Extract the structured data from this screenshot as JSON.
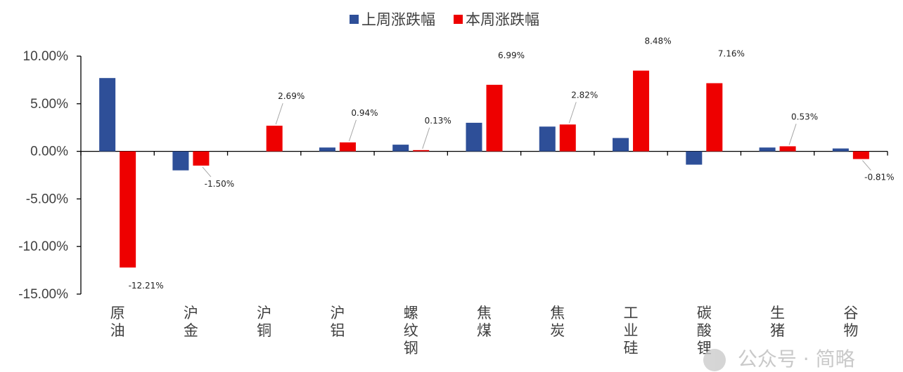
{
  "legend": {
    "last_week": "上周涨跌幅",
    "this_week": "本周涨跌幅"
  },
  "colors": {
    "last_week": "#2e4f98",
    "this_week": "#ee0000",
    "axis": "#000000"
  },
  "chart_data": {
    "type": "bar",
    "categories": [
      "原油",
      "沪金",
      "沪铜",
      "沪铝",
      "螺纹钢",
      "焦煤",
      "焦炭",
      "工业硅",
      "碳酸锂",
      "生猪",
      "谷物"
    ],
    "series": [
      {
        "name": "上周涨跌幅",
        "values": [
          7.7,
          -2.0,
          0.0,
          0.4,
          0.7,
          3.0,
          2.6,
          1.4,
          -1.4,
          0.4,
          0.3
        ]
      },
      {
        "name": "本周涨跌幅",
        "values": [
          -12.21,
          -1.5,
          2.69,
          0.94,
          0.13,
          6.99,
          2.82,
          8.48,
          7.16,
          0.53,
          -0.81
        ]
      }
    ],
    "data_labels": [
      "-12.21%",
      "-1.50%",
      "2.69%",
      "0.94%",
      "0.13%",
      "6.99%",
      "2.82%",
      "8.48%",
      "7.16%",
      "0.53%",
      "-0.81%"
    ],
    "yticks": [
      10,
      5,
      0,
      -5,
      -10,
      -15
    ],
    "ytick_labels": [
      "10.00%",
      "5.00%",
      "0.00%",
      "-5.00%",
      "-10.00%",
      "-15.00%"
    ],
    "ylim": [
      -15,
      10
    ],
    "legend_position": "top-center",
    "grid": false
  },
  "watermark": {
    "text": "公众号 · 简略"
  }
}
